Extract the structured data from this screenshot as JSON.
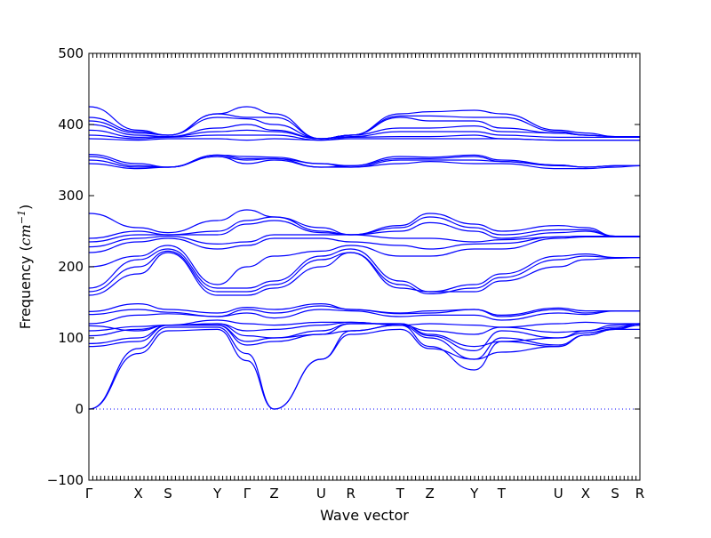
{
  "chart_data": {
    "type": "line",
    "xlabel": "Wave vector",
    "ylabel_text": "Frequency (",
    "ylabel_unit_base": "cm",
    "ylabel_unit_exp": "−1",
    "ylabel_close": ")",
    "ylim": [
      -100,
      500
    ],
    "y_ticks": [
      -100,
      0,
      100,
      200,
      300,
      400,
      500
    ],
    "x_tick_labels": [
      "Γ",
      "X",
      "S",
      "Y",
      "Γ",
      "Z",
      "U",
      "R",
      "T",
      "Z",
      "Y",
      "T",
      "U",
      "X",
      "S",
      "R"
    ],
    "x_tick_positions": [
      0,
      1,
      1.6,
      2.6,
      3.2,
      3.75,
      4.7,
      5.3,
      6.3,
      6.9,
      7.8,
      8.35,
      9.5,
      10.05,
      10.65,
      11.15
    ],
    "zero_line": true,
    "line_color": "#0000ff",
    "zero_line_color": "#0000ff",
    "series": [
      {
        "values": [
          0,
          78,
          110,
          112,
          68,
          0,
          70,
          105,
          112,
          85,
          70,
          80,
          88,
          104,
          112,
          112
        ]
      },
      {
        "values": [
          0,
          85,
          115,
          115,
          78,
          0,
          70,
          110,
          118,
          88,
          55,
          95,
          88,
          104,
          112,
          118
        ]
      },
      {
        "values": [
          88,
          95,
          118,
          118,
          90,
          95,
          105,
          110,
          118,
          100,
          70,
          100,
          90,
          104,
          113,
          118
        ]
      },
      {
        "values": [
          92,
          100,
          118,
          118,
          95,
          100,
          105,
          120,
          120,
          103,
          82,
          110,
          100,
          107,
          113,
          120
        ]
      },
      {
        "values": [
          103,
          112,
          118,
          120,
          103,
          100,
          110,
          120,
          120,
          105,
          88,
          95,
          100,
          110,
          115,
          120
        ]
      },
      {
        "values": [
          110,
          116,
          118,
          120,
          110,
          112,
          118,
          122,
          118,
          110,
          105,
          115,
          108,
          110,
          118,
          120
        ]
      },
      {
        "values": [
          117,
          110,
          118,
          125,
          120,
          118,
          122,
          122,
          118,
          120,
          118,
          115,
          120,
          122,
          120,
          120
        ]
      },
      {
        "values": [
          120,
          132,
          134,
          130,
          135,
          128,
          140,
          138,
          130,
          132,
          132,
          125,
          135,
          133,
          138,
          138
        ]
      },
      {
        "values": [
          133,
          140,
          136,
          130,
          140,
          135,
          145,
          140,
          134,
          135,
          140,
          130,
          140,
          135,
          138,
          138
        ]
      },
      {
        "values": [
          137,
          148,
          140,
          135,
          143,
          140,
          148,
          140,
          135,
          138,
          140,
          132,
          142,
          138,
          138,
          138
        ]
      },
      {
        "values": [
          160,
          190,
          220,
          160,
          160,
          170,
          200,
          220,
          170,
          165,
          165,
          180,
          200,
          210,
          212,
          213
        ]
      },
      {
        "values": [
          165,
          200,
          222,
          165,
          165,
          175,
          210,
          220,
          175,
          162,
          170,
          185,
          210,
          215,
          213,
          213
        ]
      },
      {
        "values": [
          170,
          210,
          225,
          170,
          170,
          180,
          215,
          225,
          180,
          165,
          175,
          190,
          215,
          218,
          213,
          213
        ]
      },
      {
        "values": [
          200,
          215,
          230,
          175,
          200,
          215,
          222,
          230,
          215,
          215,
          225,
          225,
          240,
          242,
          242,
          242
        ]
      },
      {
        "values": [
          220,
          235,
          240,
          225,
          230,
          240,
          240,
          235,
          230,
          225,
          232,
          233,
          242,
          243,
          243,
          242
        ]
      },
      {
        "values": [
          228,
          240,
          243,
          232,
          235,
          245,
          245,
          245,
          240,
          240,
          235,
          238,
          242,
          243,
          243,
          243
        ]
      },
      {
        "values": [
          235,
          245,
          245,
          245,
          260,
          265,
          248,
          245,
          250,
          262,
          250,
          240,
          248,
          250,
          243,
          243
        ]
      },
      {
        "values": [
          240,
          250,
          245,
          250,
          265,
          270,
          255,
          245,
          255,
          270,
          255,
          245,
          252,
          252,
          243,
          243
        ]
      },
      {
        "values": [
          275,
          255,
          248,
          265,
          280,
          270,
          250,
          245,
          258,
          275,
          260,
          250,
          258,
          255,
          243,
          243
        ]
      },
      {
        "values": [
          345,
          338,
          340,
          355,
          345,
          350,
          340,
          340,
          345,
          348,
          345,
          345,
          338,
          338,
          340,
          342
        ]
      },
      {
        "values": [
          350,
          340,
          340,
          355,
          350,
          352,
          345,
          340,
          350,
          350,
          350,
          348,
          342,
          340,
          342,
          342
        ]
      },
      {
        "values": [
          355,
          342,
          340,
          357,
          352,
          352,
          340,
          342,
          352,
          352,
          355,
          348,
          343,
          340,
          342,
          342
        ]
      },
      {
        "values": [
          358,
          345,
          340,
          357,
          355,
          354,
          345,
          342,
          355,
          354,
          357,
          350,
          343,
          340,
          342,
          342
        ]
      },
      {
        "values": [
          380,
          378,
          380,
          380,
          378,
          380,
          378,
          380,
          380,
          380,
          380,
          380,
          378,
          378,
          378,
          378
        ]
      },
      {
        "values": [
          385,
          380,
          382,
          385,
          385,
          385,
          378,
          382,
          383,
          383,
          385,
          380,
          378,
          378,
          378,
          378
        ]
      },
      {
        "values": [
          392,
          382,
          383,
          390,
          392,
          390,
          380,
          383,
          390,
          390,
          390,
          385,
          382,
          382,
          382,
          382
        ]
      },
      {
        "values": [
          400,
          385,
          383,
          395,
          400,
          392,
          380,
          385,
          395,
          395,
          398,
          390,
          388,
          385,
          383,
          383
        ]
      },
      {
        "values": [
          405,
          388,
          385,
          410,
          408,
          400,
          380,
          385,
          410,
          405,
          405,
          395,
          388,
          385,
          383,
          383
        ]
      },
      {
        "values": [
          410,
          390,
          385,
          415,
          410,
          410,
          380,
          385,
          412,
          412,
          410,
          410,
          390,
          385,
          383,
          383
        ]
      },
      {
        "values": [
          425,
          392,
          385,
          415,
          425,
          415,
          380,
          385,
          415,
          418,
          420,
          415,
          392,
          388,
          383,
          383
        ]
      }
    ]
  }
}
